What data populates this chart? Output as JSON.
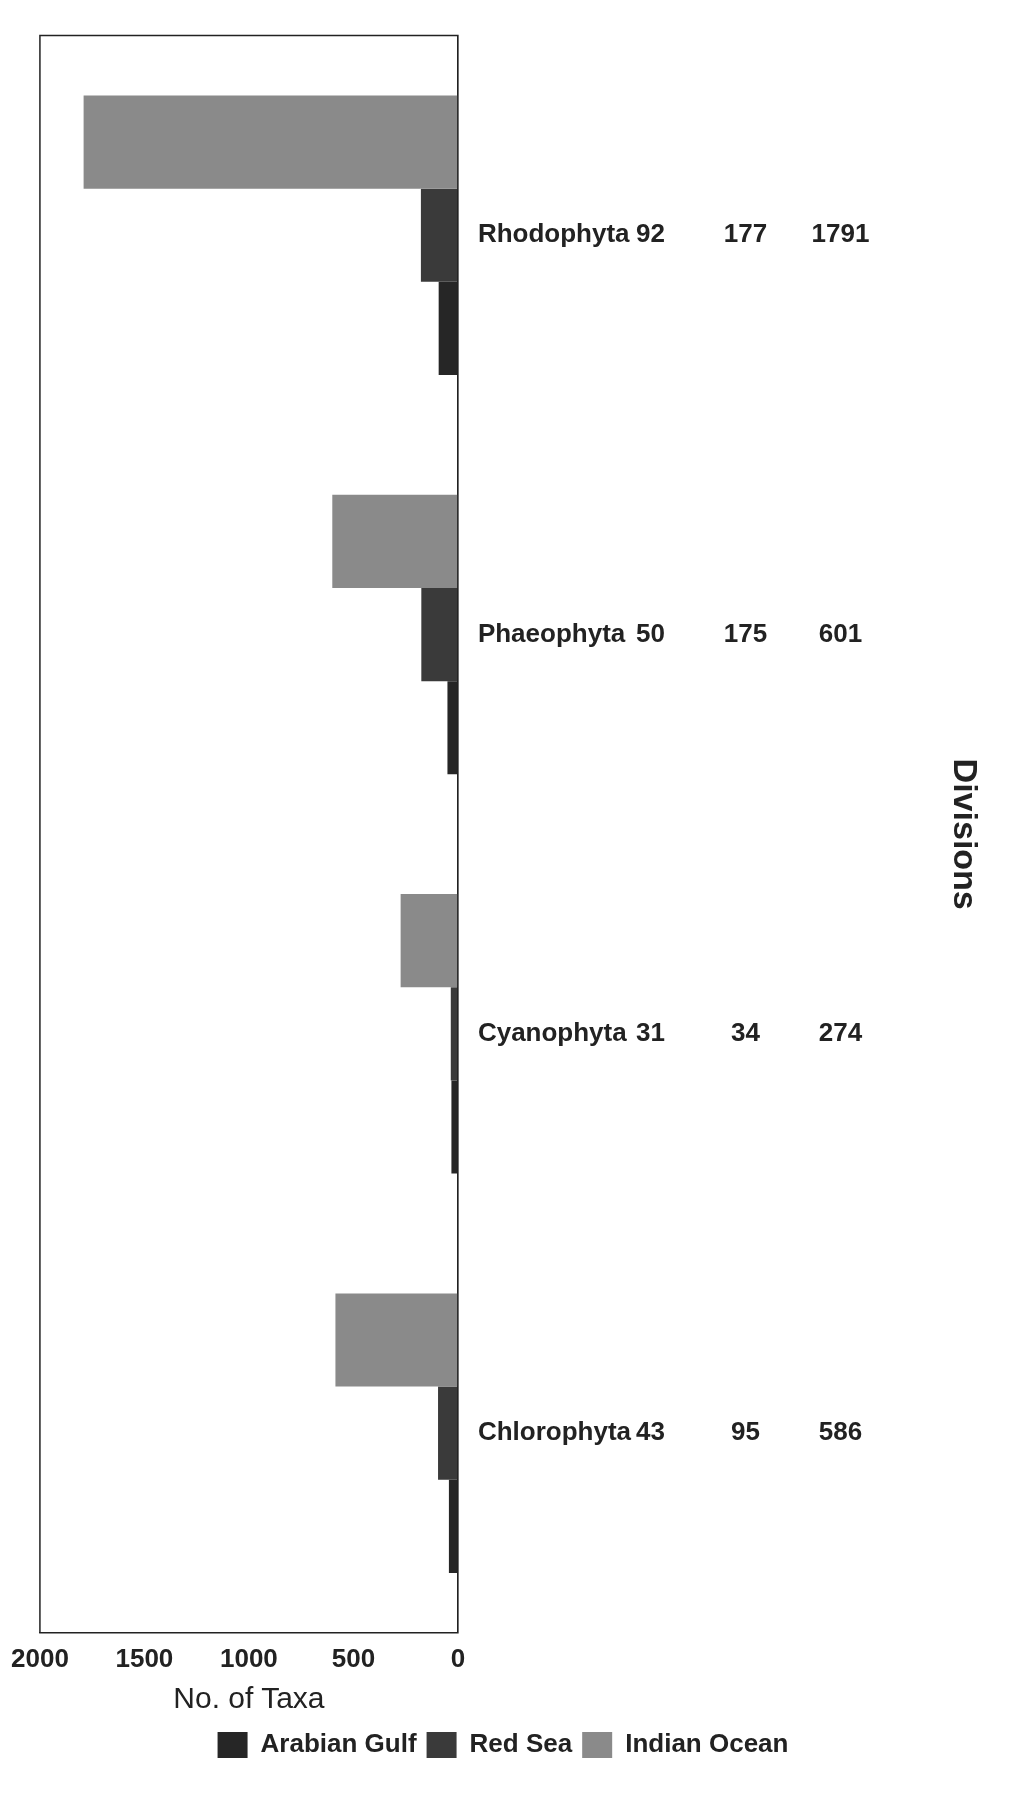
{
  "chart_data": {
    "type": "bar",
    "orientation": "horizontal",
    "xlabel": "No. of Taxa",
    "annotations": [
      "Divisions"
    ],
    "categories": [
      "Rhodophyta",
      "Phaeophyta",
      "Cyanophyta",
      "Chlorophyta"
    ],
    "series": [
      {
        "name": "Arabian Gulf",
        "color": "#262626",
        "values": [
          92,
          50,
          31,
          43
        ]
      },
      {
        "name": "Red Sea",
        "color": "#3a3a3a",
        "values": [
          177,
          175,
          34,
          95
        ]
      },
      {
        "name": "Indian Ocean",
        "color": "#8a8a8a",
        "values": [
          1791,
          601,
          274,
          586
        ]
      }
    ],
    "xlim": [
      2000,
      0
    ],
    "xticks": [
      2000,
      1500,
      1000,
      500,
      0
    ],
    "data_labels": true,
    "grid": false,
    "legend": "bottom"
  }
}
